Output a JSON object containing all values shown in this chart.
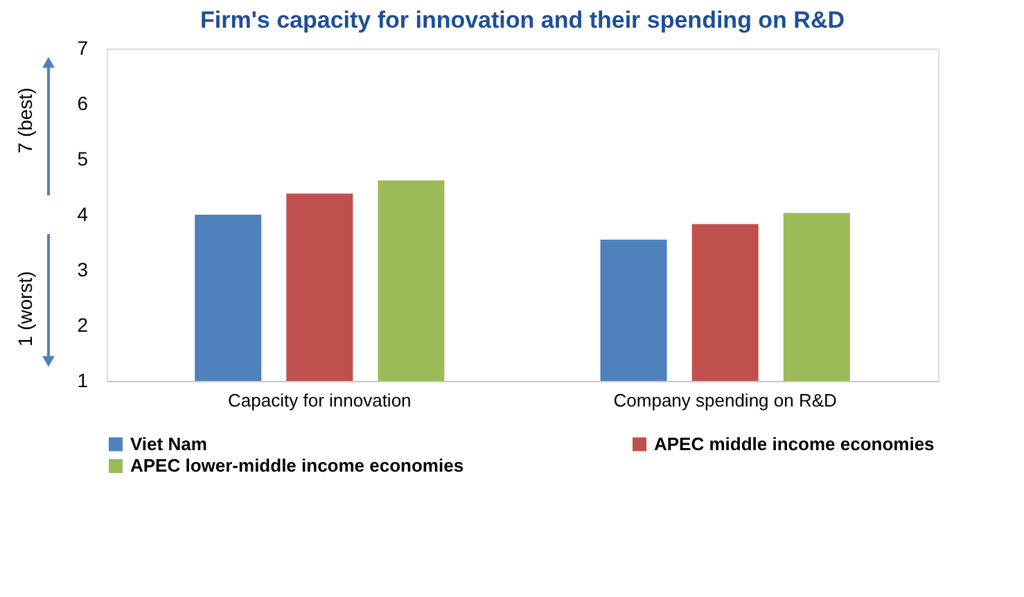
{
  "chart_data": {
    "type": "bar",
    "title": "Firm's capacity for innovation and their spending on R&D",
    "categories": [
      "Capacity for innovation",
      "Company spending on R&D"
    ],
    "series": [
      {
        "name": "Viet Nam",
        "color": "#4f81bd",
        "values": [
          4.0,
          3.55
        ]
      },
      {
        "name": "APEC middle income economies",
        "color": "#c0504d",
        "values": [
          4.38,
          3.83
        ]
      },
      {
        "name": "APEC lower-middle income economies",
        "color": "#9bbb59",
        "values": [
          4.62,
          4.03
        ]
      }
    ],
    "ylim": [
      1,
      7
    ],
    "yticks": [
      1,
      2,
      3,
      4,
      5,
      6,
      7
    ],
    "grid": false,
    "legend": "bottom",
    "annotations": [
      "7 (best)",
      "1 (worst)"
    ]
  }
}
